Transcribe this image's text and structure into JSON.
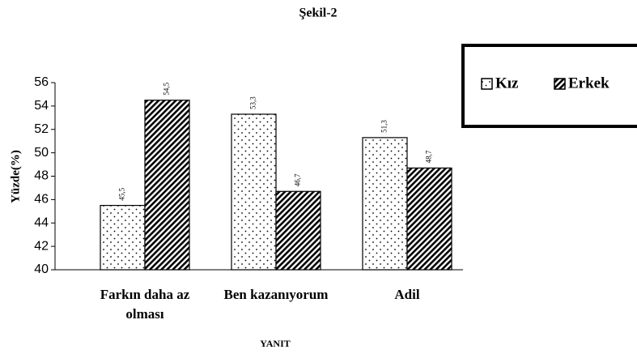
{
  "chart_data": {
    "type": "bar",
    "title": "Şekil-2",
    "y_label": "Yüzde(%)",
    "x_label": "YANIT",
    "categories": [
      "Farkın daha az olması",
      "Ben kazanıyorum",
      "Adil"
    ],
    "series": [
      {
        "name": "Kız",
        "color": "#000000",
        "values": [
          45.5,
          53.3,
          51.3
        ],
        "value_labels": [
          "45,5",
          "53,3",
          "51,3"
        ]
      },
      {
        "name": "Erkek",
        "color": "#000000",
        "values": [
          54.5,
          46.7,
          48.7
        ],
        "value_labels": [
          "54,5",
          "46,7",
          "48,7"
        ]
      }
    ],
    "ylim": [
      40,
      56
    ],
    "yticks": [
      40,
      42,
      44,
      46,
      48,
      50,
      52,
      54,
      56
    ],
    "grid": false
  }
}
